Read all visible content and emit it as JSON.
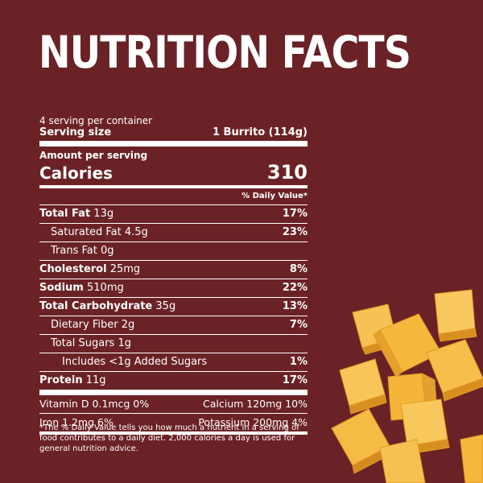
{
  "title": "NUTRITION FACTS",
  "servings_per_container": "4 serving per container",
  "serving_size_label": "Serving size",
  "serving_size_value": "1 Burrito (114g)",
  "amount_per_serving": "Amount per serving",
  "calories_label": "Calories",
  "calories_value": "310",
  "daily_value_header": "% Daily Value*",
  "nutrients": [
    {
      "label": "Total Fat",
      "amount": "13g",
      "dv": "17%"
    },
    {
      "label": "Saturated Fat 4.5g",
      "amount": "",
      "dv": "23%"
    },
    {
      "label": "Trans Fat 0g",
      "amount": "",
      "dv": ""
    },
    {
      "label": "Cholesterol",
      "amount": "25mg",
      "dv": "8%"
    },
    {
      "label": "Sodium",
      "amount": "510mg",
      "dv": "22%"
    },
    {
      "label": "Total Carbohydrate",
      "amount": "35g",
      "dv": "13%"
    },
    {
      "label": "Dietary Fiber 2g",
      "amount": "",
      "dv": "7%"
    },
    {
      "label": "Total Sugars 1g",
      "amount": "",
      "dv": ""
    },
    {
      "label": "Includes <1g Added Sugars",
      "amount": "",
      "dv": "1%"
    },
    {
      "label": "Protein",
      "amount": "11g",
      "dv": "17%"
    }
  ],
  "vitamins": [
    {
      "left": "Vitamin D 0.1mcg 0%",
      "right": "Calcium 120mg 10%"
    },
    {
      "left": "Iron 1.2mg 6%",
      "right": "Potassium 200mg 4%"
    }
  ],
  "footnote": "*The % Daily Value tells you how much a nutrient in a serving of food contributes to a daily diet. 2,000 calories a day is used for general nutrition advice.",
  "colors": {
    "background": "#6b2226",
    "text": "#ffffff",
    "cheese": "#f6b73c"
  }
}
